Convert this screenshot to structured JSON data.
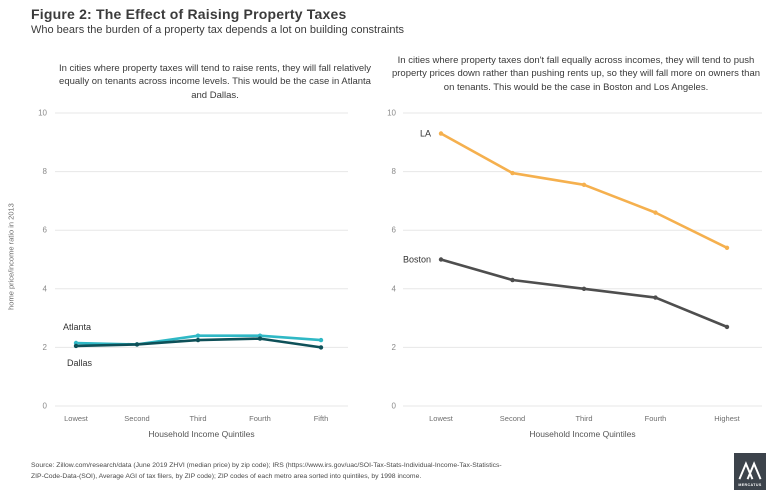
{
  "header": {
    "title": "Figure 2: The Effect of Raising Property Taxes",
    "subtitle": "Who bears the burden of a property tax depends a lot on building constraints"
  },
  "shared_ylabel": "home price/income ratio in 2013",
  "chart_data": [
    {
      "type": "line",
      "annotation": "In cities where property taxes will tend to raise rents, they will fall relatively equally on tenants across income levels. This would be the case in Atlanta and Dallas.",
      "categories": [
        "Lowest",
        "Second",
        "Third",
        "Fourth",
        "Fifth"
      ],
      "series": [
        {
          "name": "Atlanta",
          "color": "#2FB8C5",
          "values": [
            2.15,
            2.1,
            2.4,
            2.4,
            2.25
          ],
          "label_anchor": "above"
        },
        {
          "name": "Dallas",
          "color": "#0E5058",
          "values": [
            2.05,
            2.1,
            2.25,
            2.3,
            2.0
          ],
          "label_anchor": "below"
        }
      ],
      "xlabel": "Household Income Quintiles",
      "ylabel": "home price/income ratio in 2013",
      "ylim": [
        0,
        10
      ],
      "yticks": [
        0,
        2,
        4,
        6,
        8,
        10
      ],
      "grid": true,
      "legend": "inline-series-labels"
    },
    {
      "type": "line",
      "annotation": "In cities where property taxes don't fall equally across incomes, they will tend to push property prices down rather than pushing rents up, so they will fall more on owners than on tenants. This would be the case in Boston and Los Angeles.",
      "categories": [
        "Lowest",
        "Second",
        "Third",
        "Fourth",
        "Highest"
      ],
      "series": [
        {
          "name": "LA",
          "color": "#F5B04E",
          "values": [
            9.3,
            7.95,
            7.55,
            6.6,
            5.4
          ],
          "label_anchor": "left"
        },
        {
          "name": "Boston",
          "color": "#4E4E4E",
          "values": [
            5.0,
            4.3,
            4.0,
            3.7,
            2.7
          ],
          "label_anchor": "left"
        }
      ],
      "xlabel": "Household Income Quintiles",
      "ylabel": "home price/income ratio in 2013",
      "ylim": [
        0,
        10
      ],
      "yticks": [
        0,
        2,
        4,
        6,
        8,
        10
      ],
      "grid": true,
      "legend": "inline-series-labels"
    }
  ],
  "footer": {
    "source": "Source: Zillow.com/research/data (June 2019 ZHVI (median price) by zip code); IRS (https://www.irs.gov/uac/SOI-Tax-Stats-Individual-Income-Tax-Statistics-ZIP-Code-Data-(SOI), Average AGI of tax filers, by ZIP code); ZIP codes of each metro area sorted into quintiles, by 1998 income."
  },
  "logo": {
    "text": "MERCATUS"
  },
  "colors": {
    "grid": "#E7E7E7",
    "tick": "#8A8A8A",
    "category": "#6E6E6E",
    "axis_title": "#555555",
    "series_label": "#333333",
    "logo_bg": "#3C434B"
  }
}
